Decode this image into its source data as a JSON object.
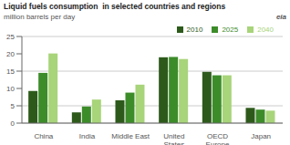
{
  "chart_data": {
    "type": "bar",
    "title": "Liquid fuels consumption  in selected countries and regions",
    "subtitle": "million barrels per day",
    "annotations": [
      "eia"
    ],
    "categories": [
      "China",
      "India",
      "Middle East",
      "United\nStates",
      "OECD\nEurope",
      "Japan"
    ],
    "series": [
      {
        "name": "2010",
        "color": "#2d5a1b",
        "values": [
          9.3,
          3.1,
          6.6,
          19.0,
          14.8,
          4.4
        ]
      },
      {
        "name": "2025",
        "color": "#3d8c2a",
        "values": [
          14.5,
          4.8,
          8.8,
          19.1,
          13.8,
          3.9
        ]
      },
      {
        "name": "2040",
        "color": "#a8d47a",
        "values": [
          20.1,
          6.8,
          11.1,
          18.5,
          13.8,
          3.6
        ]
      }
    ],
    "ylim": [
      0,
      25
    ],
    "yticks": [
      0,
      5,
      10,
      15,
      20,
      25
    ],
    "grid": true,
    "legend": "upper right"
  }
}
